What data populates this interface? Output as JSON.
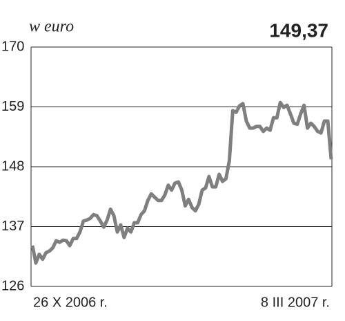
{
  "chart_data": {
    "type": "line",
    "subtitle": "w euro",
    "annotation": "149,37",
    "categories": [
      "26 X 2006 r.",
      null,
      null,
      null,
      null,
      null,
      null,
      null,
      null,
      null,
      null,
      null,
      null,
      null,
      null,
      null,
      null,
      null,
      null,
      null,
      null,
      null,
      null,
      null,
      null,
      null,
      null,
      null,
      null,
      null,
      null,
      null,
      null,
      null,
      null,
      null,
      null,
      null,
      null,
      null,
      null,
      null,
      null,
      null,
      null,
      null,
      null,
      null,
      null,
      null,
      null,
      null,
      null,
      null,
      null,
      null,
      null,
      null,
      null,
      null,
      null,
      null,
      null,
      null,
      null,
      null,
      null,
      null,
      null,
      null,
      null,
      null,
      null,
      null,
      null,
      null,
      null,
      null,
      null,
      null,
      null,
      null,
      null,
      null,
      null,
      null,
      null,
      null,
      "8 III 2007 r."
    ],
    "series": [
      {
        "color": "#7f7f7f",
        "values": [
          133.5,
          130.3,
          131.9,
          131,
          132.2,
          132.5,
          133.1,
          134.4,
          134.1,
          134.5,
          134.4,
          133.5,
          134.8,
          134.8,
          136,
          138,
          138.2,
          138.5,
          139.2,
          139,
          138,
          136.9,
          138.2,
          140.2,
          139,
          136,
          137.3,
          135,
          136.7,
          136,
          137.7,
          137.7,
          139.2,
          139.9,
          141.8,
          143,
          142.4,
          141.8,
          141.8,
          142.8,
          144.6,
          143.7,
          145,
          145.2,
          143.7,
          140.8,
          142,
          140.5,
          139.9,
          141.1,
          143.7,
          144.1,
          146.2,
          144.3,
          144.3,
          146.6,
          145.3,
          145.8,
          149.1,
          158.3,
          158,
          159.2,
          159.6,
          156.4,
          155.1,
          155.1,
          155.4,
          155.4,
          154.5,
          155.1,
          154.7,
          157,
          157,
          159.8,
          158.9,
          159.3,
          157.7,
          156,
          155.8,
          157.7,
          159.3,
          155.1,
          156,
          155.4,
          154.5,
          154.2,
          156.4,
          156.4,
          149.37
        ]
      }
    ],
    "ylim": [
      126,
      170
    ],
    "yticks": [
      126,
      137,
      148,
      159,
      170
    ],
    "grid": true
  }
}
